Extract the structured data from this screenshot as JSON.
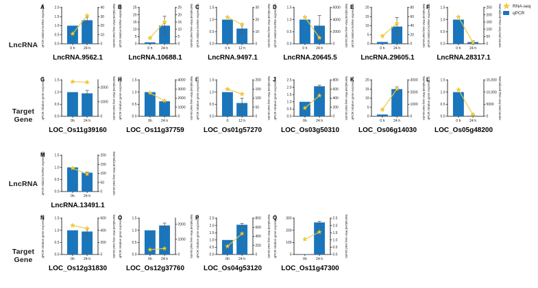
{
  "figure": {
    "row_labels": [
      {
        "text": "LncRNA",
        "row": 0
      },
      {
        "text": "Target Gene",
        "row": 1
      },
      {
        "text": "LncRNA",
        "row": 2
      },
      {
        "text": "Target Gene",
        "row": 3
      }
    ],
    "legend": {
      "rnaseq_label": "RNA-seq",
      "qpcr_label": "qPCR"
    }
  },
  "colors": {
    "bar_blue": "#1B75BB",
    "line_gold": "#EFC93D",
    "star_gold": "#FDD11F",
    "star_edge": "#D9A520",
    "error_gray": "#595959",
    "axis_black": "#000000"
  },
  "chart_data": {
    "type": "bar",
    "description": "Dual-axis panels: blue qPCR bars on left axis, gold RNA-seq star-line on right axis",
    "legend_entries": [
      "RNA-seq",
      "qPCR"
    ],
    "right_label_shared": "Normalized RNA-seq read counts",
    "panels": [
      {
        "letter": "A",
        "title": "LncRNA.9562.1",
        "row": 0,
        "col": 0,
        "left_label": "qPCR relative lncRNA expression",
        "right_label": "Normalized RNA-seq read counts",
        "left_ticks": [
          "0.0",
          "0.5",
          "1.0",
          "1.5",
          "2.0"
        ],
        "left_max": 2.0,
        "right_ticks": [
          "0",
          "10",
          "20",
          "30",
          "40"
        ],
        "right_max": 40,
        "x_labels": [
          "0 h",
          "24 h"
        ],
        "qpcr_bars": [
          1.0,
          1.3
        ],
        "qpcr_errors": [
          0,
          0.17
        ],
        "rnaseq_line": [
          11,
          31
        ]
      },
      {
        "letter": "B",
        "title": "LncRNA.10688.1",
        "row": 0,
        "col": 1,
        "left_label": "qPCR relative lncRNA expression",
        "right_label": "Normalized RNA-seq read counts",
        "left_ticks": [
          "0",
          "5",
          "10",
          "15",
          "20",
          "25"
        ],
        "left_max": 25,
        "right_ticks": [
          "0",
          "5",
          "10",
          "15",
          "20",
          "25"
        ],
        "right_max": 25,
        "x_labels": [
          "0 h",
          "24 h"
        ],
        "qpcr_bars": [
          1.0,
          12.5
        ],
        "qpcr_errors": [
          0,
          6.5
        ],
        "rnaseq_line": [
          4,
          15
        ]
      },
      {
        "letter": "C",
        "title": "LncRNA.9497.1",
        "row": 0,
        "col": 2,
        "left_label": "qPCR relative lncRNA expression",
        "right_label": "Normalized RNA-seq read counts",
        "left_ticks": [
          "0.0",
          "0.5",
          "1.0",
          "1.5"
        ],
        "left_max": 1.5,
        "right_ticks": [
          "0",
          "10",
          "20",
          "30"
        ],
        "right_max": 30,
        "x_labels": [
          "0 h",
          "12 h"
        ],
        "qpcr_bars": [
          1.0,
          0.63
        ],
        "qpcr_errors": [
          0,
          0.18
        ],
        "rnaseq_line": [
          22,
          16
        ]
      },
      {
        "letter": "D",
        "title": "LncRNA.20645.5",
        "row": 0,
        "col": 3,
        "left_label": "qPCR relative lncRNA expression",
        "right_label": "Normalized RNA-seq read counts",
        "left_ticks": [
          "0.0",
          "0.5",
          "1.0",
          "1.5"
        ],
        "left_max": 1.5,
        "right_ticks": [
          "0",
          "2000",
          "4000",
          "6000"
        ],
        "right_max": 6000,
        "x_labels": [
          "0 h",
          "24 h"
        ],
        "qpcr_bars": [
          1.0,
          0.75
        ],
        "qpcr_errors": [
          0,
          0.42
        ],
        "rnaseq_line": [
          4400,
          1000
        ]
      },
      {
        "letter": "E",
        "title": "LncRNA.29605.1",
        "row": 0,
        "col": 4,
        "left_label": "qPCR relative lncRNA expression",
        "right_label": "Normalized RNA-seq read counts",
        "left_ticks": [
          "0",
          "5",
          "10",
          "15",
          "20"
        ],
        "left_max": 20,
        "right_ticks": [
          "0",
          "20",
          "40",
          "60",
          "80"
        ],
        "right_max": 80,
        "x_labels": [
          "0 h",
          "24 h"
        ],
        "qpcr_bars": [
          1.0,
          9.5
        ],
        "qpcr_errors": [
          0,
          5
        ],
        "rnaseq_line": [
          17,
          45
        ]
      },
      {
        "letter": "F",
        "title": "LncRNA.28317.1",
        "row": 0,
        "col": 5,
        "left_label": "qPCR relative lncRNA expression",
        "right_label": "Normalized RNA-seq read counts",
        "left_ticks": [
          "0.0",
          "0.5",
          "1.0",
          "1.5"
        ],
        "left_max": 1.5,
        "right_ticks": [
          "0",
          "50",
          "100",
          "150",
          "200",
          "250"
        ],
        "right_max": 250,
        "x_labels": [
          "0 h",
          "24 h"
        ],
        "qpcr_bars": [
          1.0,
          0.07
        ],
        "qpcr_errors": [
          0,
          0.05
        ],
        "rnaseq_line": [
          185,
          8
        ]
      },
      {
        "letter": "G",
        "title": "LOC_Os11g39160",
        "row": 1,
        "col": 0,
        "left_label": "qPCR relative gene expression",
        "right_label": "Normalized RNA-seq read counts",
        "left_ticks": [
          "0.0",
          "0.5",
          "1.0",
          "1.5"
        ],
        "left_max": 1.5,
        "right_ticks": [
          "0",
          "1000",
          "2000"
        ],
        "right_max": 2500,
        "x_labels": [
          "0h",
          "24 h"
        ],
        "qpcr_bars": [
          1.0,
          0.95
        ],
        "qpcr_errors": [
          0,
          0.12
        ],
        "rnaseq_line": [
          2380,
          2350
        ]
      },
      {
        "letter": "H",
        "title": "LOC_Os11g37759",
        "row": 1,
        "col": 1,
        "left_label": "qPCR relative gene expression",
        "right_label": "Normalized RNA-seq read counts",
        "left_ticks": [
          "0.0",
          "0.5",
          "1.0",
          "1.5"
        ],
        "left_max": 1.5,
        "right_ticks": [
          "0",
          "1000",
          "2000",
          "3000",
          "4000"
        ],
        "right_max": 4000,
        "x_labels": [
          "0h",
          "24 h"
        ],
        "qpcr_bars": [
          1.0,
          0.62
        ],
        "qpcr_errors": [
          0,
          0.04
        ],
        "rnaseq_line": [
          2580,
          1700
        ]
      },
      {
        "letter": "I",
        "title": "LOC_Os01g57270",
        "row": 1,
        "col": 2,
        "left_label": "qPCR relative gene expression",
        "right_label": "Normalized RNA-seq read counts",
        "left_ticks": [
          "0.0",
          "0.5",
          "1.0",
          "1.5"
        ],
        "left_max": 1.5,
        "right_ticks": [
          "0",
          "50",
          "100",
          "150",
          "200"
        ],
        "right_max": 200,
        "x_labels": [
          "0",
          "12 h"
        ],
        "qpcr_bars": [
          1.0,
          0.55
        ],
        "qpcr_errors": [
          0,
          0.2
        ],
        "rnaseq_line": [
          150,
          123
        ]
      },
      {
        "letter": "J",
        "title": "LOC_Os03g50310",
        "row": 1,
        "col": 3,
        "left_label": "qPCR relative gene expression",
        "right_label": "Normalized RNA-seq read counts",
        "left_ticks": [
          "0.0",
          "0.5",
          "1.0",
          "1.5",
          "2.0",
          "2.5"
        ],
        "left_max": 2.5,
        "right_ticks": [
          "0",
          "200",
          "400",
          "600",
          "800"
        ],
        "right_max": 800,
        "x_labels": [
          "0h",
          "24 h"
        ],
        "qpcr_bars": [
          1.0,
          2.07
        ],
        "qpcr_errors": [
          0,
          0.08
        ],
        "rnaseq_line": [
          182,
          458
        ]
      },
      {
        "letter": "K",
        "title": "LOC_Os06g14030",
        "row": 1,
        "col": 4,
        "left_label": "qPCR relative gene expression",
        "right_label": "Normalized RNA-seq read counts",
        "left_ticks": [
          "0",
          "5",
          "10",
          "15",
          "20"
        ],
        "left_max": 20,
        "right_ticks": [
          "0",
          "1000",
          "2000",
          "3000"
        ],
        "right_max": 3000,
        "x_labels": [
          "0 h",
          "24 h"
        ],
        "qpcr_bars": [
          1.0,
          15
        ],
        "qpcr_errors": [
          0,
          1.2
        ],
        "rnaseq_line": [
          550,
          2250
        ]
      },
      {
        "letter": "L",
        "title": "LOC_Os05g48200",
        "row": 1,
        "col": 5,
        "left_label": "qPCR relative gene expression",
        "right_label": "Normalized RNA-seq read counts",
        "left_ticks": [
          "0.0",
          "0.5",
          "1.0",
          "1.5"
        ],
        "left_max": 1.5,
        "right_ticks": [
          "0",
          "5000",
          "10,000",
          "15,000"
        ],
        "right_max": 15000,
        "x_labels": [
          "0 h",
          "24 h"
        ],
        "qpcr_bars": [
          1.0,
          0.02
        ],
        "qpcr_errors": [
          0,
          0.02
        ],
        "rnaseq_line": [
          11000,
          700
        ]
      },
      {
        "letter": "M",
        "title": "LncRNA.13491.1",
        "row": 2,
        "col": 0,
        "left_label": "qPCR relative lncRNA expression",
        "right_label": "Normalized RNA-seq read counts",
        "left_ticks": [
          "0.0",
          "0.5",
          "1.0",
          "1.5"
        ],
        "left_max": 1.5,
        "right_ticks": [
          "0",
          "50",
          "100",
          "150",
          "200"
        ],
        "right_max": 200,
        "x_labels": [
          "0h",
          "24 h"
        ],
        "qpcr_bars": [
          1.0,
          0.78
        ],
        "qpcr_errors": [
          0,
          0.03
        ],
        "rnaseq_line": [
          129,
          96
        ]
      },
      {
        "letter": "N",
        "title": "LOC_Os12g31830",
        "row": 3,
        "col": 0,
        "left_label": "qPCR relative gene expression",
        "right_label": "Normalized RNA-seq read counts",
        "left_ticks": [
          "0.0",
          "0.5",
          "1.0",
          "1.5"
        ],
        "left_max": 1.5,
        "right_ticks": [
          "0",
          "200",
          "400",
          "600"
        ],
        "right_max": 600,
        "x_labels": [
          "0h",
          "24 h"
        ],
        "qpcr_bars": [
          1.0,
          0.95
        ],
        "qpcr_errors": [
          0,
          0.13
        ],
        "rnaseq_line": [
          480,
          430
        ]
      },
      {
        "letter": "O",
        "title": "LOC_Os12g37760",
        "row": 3,
        "col": 1,
        "left_label": "qPCR relative gene expression",
        "right_label": "Normalized RNA-seq read counts",
        "left_ticks": [
          "0.0",
          "0.5",
          "1.0",
          "1.5"
        ],
        "left_max": 1.5,
        "right_ticks": [
          "0",
          "1000",
          "2000"
        ],
        "right_max": 2400,
        "x_labels": [
          "0h",
          "24 h"
        ],
        "qpcr_bars": [
          1.0,
          1.2
        ],
        "qpcr_errors": [
          0,
          0.1
        ],
        "rnaseq_line": [
          320,
          400
        ]
      },
      {
        "letter": "P",
        "title": "LOC_Os04g53120",
        "row": 3,
        "col": 2,
        "left_label": "qPCR relative gene expression",
        "right_label": "Normalized RNA-seq read counts",
        "left_ticks": [
          "0.0",
          "0.5",
          "1.0",
          "1.5",
          "2.0",
          "2.5"
        ],
        "left_max": 2.5,
        "right_ticks": [
          "0",
          "200",
          "400",
          "600",
          "800"
        ],
        "right_max": 800,
        "x_labels": [
          "0h",
          "24 h"
        ],
        "qpcr_bars": [
          1.0,
          2.05
        ],
        "qpcr_errors": [
          0,
          0.1
        ],
        "rnaseq_line": [
          180,
          460
        ]
      },
      {
        "letter": "Q",
        "title": "LOC_Os11g47300",
        "row": 3,
        "col": 3,
        "left_label": "qPCR relative gene expression",
        "right_label": "Normalized RNA-seq read counts",
        "left_ticks": [
          "0",
          "100",
          "200",
          "300"
        ],
        "left_max": 300,
        "right_ticks": [
          "0.0",
          "0.5",
          "1.0",
          "1.5",
          "2.0",
          "2.5"
        ],
        "right_max": 2.5,
        "x_labels": [
          "0h",
          "24 h"
        ],
        "qpcr_bars": [
          2,
          265
        ],
        "qpcr_errors": [
          0,
          10
        ],
        "rnaseq_line": [
          1.05,
          1.55
        ]
      }
    ]
  }
}
